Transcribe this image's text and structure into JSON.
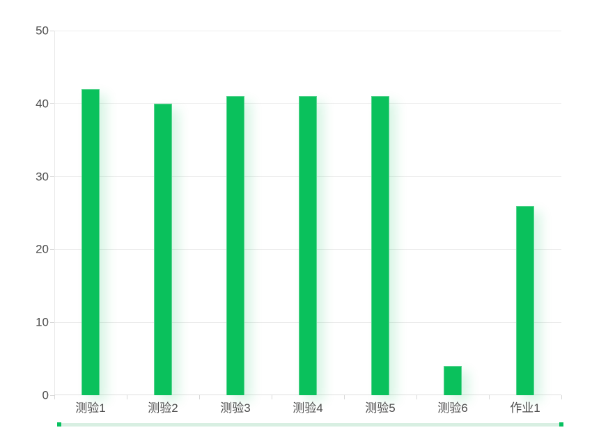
{
  "chart_data": {
    "type": "bar",
    "title": "",
    "xlabel": "",
    "ylabel": "",
    "categories": [
      "测验1",
      "测验2",
      "测验3",
      "测验4",
      "测验5",
      "测验6",
      "作业1"
    ],
    "values": [
      42,
      40,
      41,
      41,
      41,
      4,
      26
    ],
    "ylim": [
      0,
      50
    ],
    "y_ticks": [
      0,
      10,
      20,
      30,
      40,
      50
    ],
    "grid": "on",
    "legend": "none",
    "colors": {
      "bar_fill": "#0ac15c",
      "bar_edge": "#5ad491",
      "bar_glow": "rgba(10,193,92,0.16)",
      "gridline": "#ececec",
      "axis_line": "#e0e0e0",
      "tick": "#d8d8d8",
      "tick_label": "#4d4d4d"
    }
  },
  "datazoom": {
    "track_color": "#d8efe2",
    "handle_color": "#07c160"
  }
}
